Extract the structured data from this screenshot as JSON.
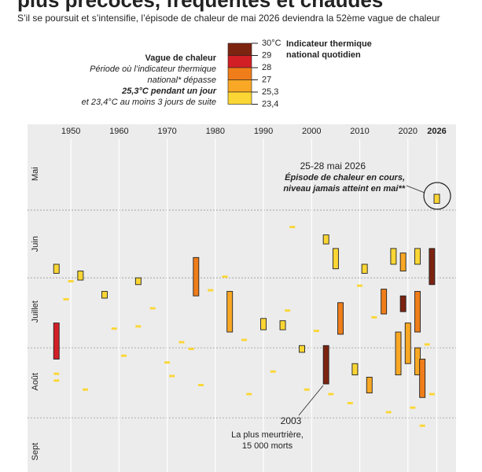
{
  "chart_data": {
    "type": "heatwave-calendar",
    "title": "plus précoces, fréquentes et chaudes",
    "subtitle": "S’il se poursuit et s’intensifie, l’épisode de chaleur de mai 2026 deviendra la 52ème vague de chaleur",
    "legend": {
      "title": "Vague de chaleur",
      "lines": [
        "Période où l’indicateur thermique",
        "national* dépasse",
        "25,3°C pendant un jour",
        "et 23,4°C au moins 3 jours de suite"
      ],
      "scale_title": [
        "Indicateur thermique",
        "national quotidien"
      ],
      "scale_ticks": [
        {
          "value": 30,
          "label": "30°C"
        },
        29,
        28,
        27,
        {
          "value": 25.3,
          "label": "25,3"
        },
        {
          "value": 23.4,
          "label": "23,4"
        }
      ],
      "scale_colors": [
        "#7d2410",
        "#d21f26",
        "#ef7d1a",
        "#f9a825",
        "#fbd634"
      ]
    },
    "xlim": [
      1941,
      2030
    ],
    "xticks": [
      1950,
      1960,
      1970,
      1980,
      1990,
      2000,
      2010,
      2020,
      2026
    ],
    "ylim": [
      -7,
      147
    ],
    "yticks": [
      {
        "value": 15,
        "label": "Mai"
      },
      {
        "value": 46,
        "label": "Juin"
      },
      {
        "value": 76,
        "label": "Juillet"
      },
      {
        "value": 107,
        "label": "Août"
      },
      {
        "value": 138,
        "label": "Sept"
      }
    ],
    "ygrid": [
      31,
      61,
      92,
      123
    ],
    "waves": [
      {
        "year": 1947,
        "start": 55,
        "end": 58,
        "peak": 25
      },
      {
        "year": 1947,
        "start": 81,
        "end": 96,
        "peak": 28
      },
      {
        "year": 1952,
        "start": 58,
        "end": 61,
        "peak": 25
      },
      {
        "year": 1957,
        "start": 67,
        "end": 69,
        "peak": 25
      },
      {
        "year": 1964,
        "start": 61,
        "end": 63,
        "peak": 25
      },
      {
        "year": 1976,
        "start": 52,
        "end": 68,
        "peak": 27
      },
      {
        "year": 1983,
        "start": 67,
        "end": 84,
        "peak": 26
      },
      {
        "year": 1990,
        "start": 79,
        "end": 83,
        "peak": 25
      },
      {
        "year": 1994,
        "start": 80,
        "end": 83,
        "peak": 25
      },
      {
        "year": 1998,
        "start": 91,
        "end": 93,
        "peak": 25
      },
      {
        "year": 2003,
        "start": 42,
        "end": 45,
        "peak": 25
      },
      {
        "year": 2003,
        "start": 91,
        "end": 107,
        "peak": 29.4
      },
      {
        "year": 2005,
        "start": 48,
        "end": 56,
        "peak": 25
      },
      {
        "year": 2006,
        "start": 72,
        "end": 85,
        "peak": 27
      },
      {
        "year": 2009,
        "start": 99,
        "end": 103,
        "peak": 25
      },
      {
        "year": 2011,
        "start": 55,
        "end": 58,
        "peak": 25
      },
      {
        "year": 2012,
        "start": 105,
        "end": 111,
        "peak": 26
      },
      {
        "year": 2015,
        "start": 66,
        "end": 76,
        "peak": 27
      },
      {
        "year": 2017,
        "start": 48,
        "end": 54,
        "peak": 25
      },
      {
        "year": 2018,
        "start": 85,
        "end": 103,
        "peak": 26
      },
      {
        "year": 2019,
        "start": 50,
        "end": 57,
        "peak": 26
      },
      {
        "year": 2019,
        "start": 69,
        "end": 75,
        "peak": 29.4
      },
      {
        "year": 2020,
        "start": 81,
        "end": 98,
        "peak": 26
      },
      {
        "year": 2022,
        "start": 48,
        "end": 54,
        "peak": 25
      },
      {
        "year": 2022,
        "start": 67,
        "end": 84,
        "peak": 27
      },
      {
        "year": 2022,
        "start": 92,
        "end": 103,
        "peak": 26
      },
      {
        "year": 2023,
        "start": 97,
        "end": 113,
        "peak": 27
      },
      {
        "year": 2025,
        "start": 48,
        "end": 63,
        "peak": 29.4
      },
      {
        "year": 2026,
        "start": 24,
        "end": 27,
        "peak": 24
      }
    ],
    "hot_days": [
      {
        "year": 1947,
        "day": 103,
        "temp": 24
      },
      {
        "year": 1947,
        "day": 106,
        "temp": 24
      },
      {
        "year": 1949,
        "day": 70,
        "temp": 24
      },
      {
        "year": 1950,
        "day": 62,
        "temp": 24
      },
      {
        "year": 1953,
        "day": 110,
        "temp": 24
      },
      {
        "year": 1959,
        "day": 83,
        "temp": 24
      },
      {
        "year": 1961,
        "day": 95,
        "temp": 24
      },
      {
        "year": 1964,
        "day": 82,
        "temp": 24
      },
      {
        "year": 1967,
        "day": 74,
        "temp": 24
      },
      {
        "year": 1970,
        "day": 98,
        "temp": 24
      },
      {
        "year": 1971,
        "day": 104,
        "temp": 24
      },
      {
        "year": 1973,
        "day": 89,
        "temp": 24
      },
      {
        "year": 1975,
        "day": 92,
        "temp": 24
      },
      {
        "year": 1977,
        "day": 108,
        "temp": 24
      },
      {
        "year": 1979,
        "day": 66,
        "temp": 24
      },
      {
        "year": 1982,
        "day": 60,
        "temp": 24
      },
      {
        "year": 1986,
        "day": 88,
        "temp": 24
      },
      {
        "year": 1987,
        "day": 112,
        "temp": 24
      },
      {
        "year": 1992,
        "day": 102,
        "temp": 24
      },
      {
        "year": 1995,
        "day": 75,
        "temp": 24
      },
      {
        "year": 1996,
        "day": 38,
        "temp": 24
      },
      {
        "year": 1999,
        "day": 110,
        "temp": 24
      },
      {
        "year": 2001,
        "day": 84,
        "temp": 24
      },
      {
        "year": 2004,
        "day": 112,
        "temp": 24
      },
      {
        "year": 2008,
        "day": 116,
        "temp": 24
      },
      {
        "year": 2010,
        "day": 64,
        "temp": 24
      },
      {
        "year": 2013,
        "day": 78,
        "temp": 24
      },
      {
        "year": 2016,
        "day": 120,
        "temp": 24
      },
      {
        "year": 2021,
        "day": 118,
        "temp": 24
      },
      {
        "year": 2023,
        "day": 126,
        "temp": 24
      },
      {
        "year": 2024,
        "day": 90,
        "temp": 24
      },
      {
        "year": 2025,
        "day": 112,
        "temp": 24
      }
    ],
    "annotations": {
      "may2026_date": "25-28 mai 2026",
      "may2026_text": [
        "Épisode de chaleur en cours,",
        "niveau jamais atteint en mai**"
      ],
      "y2003_title": "2003",
      "y2003_text": [
        "La plus meurtrière,",
        "15 000 morts"
      ]
    }
  }
}
